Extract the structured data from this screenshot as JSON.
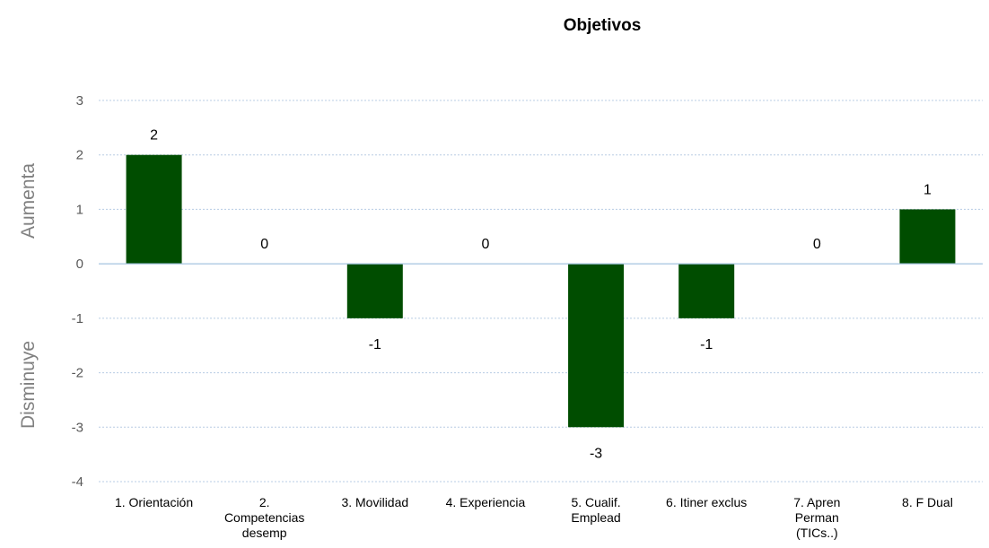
{
  "chart_data": {
    "type": "bar",
    "title": "Objetivos",
    "ylabel_top": "Aumenta",
    "ylabel_bottom": "Disminuye",
    "categories": [
      [
        "1. Orientación"
      ],
      [
        "2.",
        "Competencias",
        "desemp"
      ],
      [
        "3. Movilidad"
      ],
      [
        "4. Experiencia"
      ],
      [
        "5. Cualif.",
        "Emplead"
      ],
      [
        "6. Itiner exclus"
      ],
      [
        "7. Apren",
        "Perman",
        "(TICs..)"
      ],
      [
        "8. F Dual"
      ]
    ],
    "values": [
      2,
      0,
      -1,
      0,
      -3,
      -1,
      0,
      1
    ],
    "ylim": [
      -4,
      3
    ],
    "yticks": [
      3,
      2,
      1,
      0,
      -1,
      -2,
      -3,
      -4
    ],
    "bar_color": "#004d00",
    "grid": true
  }
}
